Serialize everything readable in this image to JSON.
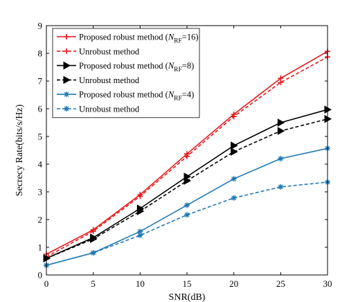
{
  "chart_data": {
    "type": "line",
    "xlabel": "SNR(dB)",
    "ylabel": "Secrecy Rate(bits/s/Hz)",
    "x": [
      0,
      5,
      10,
      15,
      20,
      25,
      30
    ],
    "xticks": [
      0,
      5,
      10,
      15,
      20,
      25,
      30
    ],
    "yticks": [
      0,
      1,
      2,
      3,
      4,
      5,
      6,
      7,
      8,
      9
    ],
    "xlim": [
      0,
      30
    ],
    "ylim": [
      0,
      9
    ],
    "grid": false,
    "legend_position": "top-left",
    "series": [
      {
        "name": "Proposed robust method (NRF=16)",
        "legend_main": "Proposed robust method (",
        "legend_sub": "RF",
        "legend_tail": "=16)",
        "color": "#e8171b",
        "dash": "solid",
        "marker": "plus",
        "values": [
          0.75,
          1.63,
          2.9,
          4.37,
          5.8,
          7.1,
          8.07
        ]
      },
      {
        "name": "Unrobust method",
        "legend_main": "Unrobust method",
        "color": "#e8171b",
        "dash": "dashed",
        "marker": "plus",
        "values": [
          0.65,
          1.58,
          2.84,
          4.28,
          5.72,
          6.95,
          7.87
        ]
      },
      {
        "name": "Proposed robust method (NRF=8)",
        "legend_main": "Proposed robust method (",
        "legend_sub": "RF",
        "legend_tail": "=8)",
        "color": "#000000",
        "dash": "solid",
        "marker": "triangle-right",
        "values": [
          0.6,
          1.35,
          2.4,
          3.55,
          4.67,
          5.5,
          5.97
        ]
      },
      {
        "name": "Unrobust method",
        "legend_main": "Unrobust method",
        "color": "#000000",
        "dash": "dashed",
        "marker": "triangle-right",
        "values": [
          0.6,
          1.3,
          2.3,
          3.4,
          4.45,
          5.2,
          5.63
        ]
      },
      {
        "name": "Proposed robust method (NRF=4)",
        "legend_main": "Proposed robust method (",
        "legend_sub": "RF",
        "legend_tail": "=4)",
        "color": "#1f78b4",
        "dash": "solid",
        "marker": "asterisk",
        "values": [
          0.35,
          0.8,
          1.57,
          2.52,
          3.47,
          4.2,
          4.57
        ]
      },
      {
        "name": "Unrobust method",
        "legend_main": "Unrobust method",
        "color": "#1f78b4",
        "dash": "dashed",
        "marker": "asterisk",
        "values": [
          0.35,
          0.8,
          1.43,
          2.17,
          2.78,
          3.18,
          3.35
        ]
      }
    ]
  }
}
